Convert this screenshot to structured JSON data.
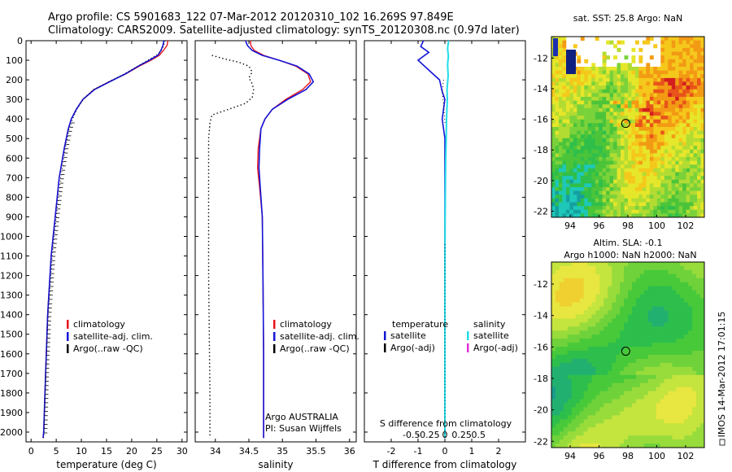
{
  "title_line1": "Argo profile: CS 5901683_122 07-Mar-2012 20120310_102 16.269S 97.849E",
  "title_line2": "Climatology: CARS2009. Satellite-adjusted climatology: synTS_20120308.nc (0.97d later)",
  "side_label": "IMOS 14-Mar-2012 17:01:15",
  "colors": {
    "climatology": "#e8141c",
    "satellite": "#1414d8",
    "argo": "#000000",
    "sat_salinity": "#22dde8",
    "argo_adj_salinity": "#e22fd8"
  },
  "chart_data": [
    {
      "type": "line",
      "name": "temperature-profile",
      "xlabel": "temperature (deg C)",
      "ylabel": "",
      "xlim": [
        -1,
        31
      ],
      "ylim": [
        2050,
        0
      ],
      "xticks": [
        "0",
        "5",
        "10",
        "15",
        "20",
        "25",
        "30"
      ],
      "xtick_values": [
        0,
        5,
        10,
        15,
        20,
        25,
        30
      ],
      "yticks": [
        "0",
        "100",
        "200",
        "300",
        "400",
        "500",
        "600",
        "700",
        "800",
        "900",
        "1000",
        "1100",
        "1200",
        "1300",
        "1400",
        "1500",
        "1600",
        "1700",
        "1800",
        "1900",
        "2000"
      ],
      "ytick_values": [
        0,
        100,
        200,
        300,
        400,
        500,
        600,
        700,
        800,
        900,
        1000,
        1100,
        1200,
        1300,
        1400,
        1500,
        1600,
        1700,
        1800,
        1900,
        2000
      ],
      "legend": [
        "climatology",
        "satellite-adj. clim.",
        "Argo(..raw -QC)"
      ],
      "series": [
        {
          "name": "climatology",
          "x": [
            27.2,
            27.0,
            26.3,
            25.5,
            23.8,
            21.5,
            18.8,
            15.5,
            12.5,
            10.3,
            9.0,
            8.0,
            7.4,
            6.6,
            5.6,
            4.8,
            4.0,
            3.3,
            2.9,
            2.5,
            2.4
          ],
          "y": [
            0,
            25,
            50,
            75,
            100,
            130,
            170,
            210,
            250,
            300,
            350,
            400,
            450,
            550,
            700,
            900,
            1100,
            1400,
            1700,
            2000,
            2030
          ]
        },
        {
          "name": "satellite-adj. clim.",
          "x": [
            26.4,
            26.2,
            25.8,
            25.2,
            23.5,
            21.3,
            18.7,
            15.6,
            12.6,
            10.3,
            9.0,
            8.0,
            7.4,
            6.6,
            5.6,
            4.8,
            4.0,
            3.3,
            2.9,
            2.5,
            2.4
          ],
          "y": [
            0,
            25,
            50,
            75,
            100,
            130,
            170,
            210,
            250,
            300,
            350,
            400,
            450,
            550,
            700,
            900,
            1100,
            1400,
            1700,
            2000,
            2030
          ]
        },
        {
          "name": "Argo(..raw -QC)",
          "x": [
            26.6,
            26.4,
            25.9,
            24.8,
            23.2,
            21.2,
            18.5,
            15.4,
            12.4,
            10.4,
            9.1,
            8.3,
            7.6,
            6.8,
            5.9,
            5.0,
            4.2,
            3.4,
            2.9,
            2.6,
            2.5
          ],
          "y": [
            0,
            25,
            50,
            75,
            100,
            130,
            170,
            210,
            250,
            300,
            350,
            400,
            450,
            550,
            700,
            900,
            1100,
            1400,
            1700,
            2000,
            2030
          ]
        }
      ]
    },
    {
      "type": "line",
      "name": "salinity-profile",
      "xlabel": "salinity",
      "xlim": [
        33.7,
        36.1
      ],
      "ylim": [
        2050,
        0
      ],
      "xticks": [
        "34",
        "34.5",
        "35",
        "35.5",
        "36"
      ],
      "xtick_values": [
        34,
        34.5,
        35,
        35.5,
        36
      ],
      "legend": [
        "climatology",
        "satellite-adj. clim.",
        "Argo(..raw -QC)"
      ],
      "annotation": [
        "Argo AUSTRALIA",
        "PI: Susan Wijffels"
      ],
      "series": [
        {
          "name": "climatology",
          "x": [
            34.52,
            34.53,
            34.58,
            34.72,
            34.95,
            35.2,
            35.38,
            35.42,
            35.3,
            35.05,
            34.85,
            34.74,
            34.68,
            34.64,
            34.63,
            34.66,
            34.7,
            34.71,
            34.72,
            34.72,
            34.72
          ],
          "y": [
            0,
            25,
            50,
            75,
            100,
            130,
            170,
            210,
            250,
            300,
            350,
            400,
            450,
            550,
            650,
            750,
            900,
            1200,
            1600,
            2000,
            2030
          ]
        },
        {
          "name": "satellite-adj. clim.",
          "x": [
            34.45,
            34.48,
            34.55,
            34.7,
            34.95,
            35.22,
            35.4,
            35.46,
            35.35,
            35.08,
            34.85,
            34.74,
            34.68,
            34.66,
            34.65,
            34.67,
            34.7,
            34.71,
            34.72,
            34.72,
            34.72
          ],
          "y": [
            0,
            25,
            50,
            75,
            100,
            130,
            170,
            210,
            250,
            300,
            350,
            400,
            450,
            550,
            650,
            750,
            900,
            1200,
            1600,
            2000,
            2030
          ]
        },
        {
          "name": "Argo(..raw -QC)",
          "x": [
            33.95,
            34.1,
            34.35,
            34.5,
            34.55,
            34.5,
            34.55,
            34.57,
            34.55,
            34.45,
            34.2,
            33.95,
            33.92,
            33.9,
            33.9,
            33.9,
            33.9,
            33.91,
            33.92,
            33.92,
            33.92
          ],
          "y": [
            75,
            90,
            110,
            130,
            160,
            190,
            220,
            250,
            290,
            320,
            350,
            380,
            420,
            500,
            700,
            900,
            1200,
            1500,
            1800,
            2000,
            2030
          ]
        }
      ]
    },
    {
      "type": "line",
      "name": "difference-profile",
      "xlabel": "T difference from climatology",
      "top_label": "S difference from climatology",
      "xlim": [
        -3,
        3
      ],
      "ylim": [
        2050,
        0
      ],
      "xticks": [
        "-2",
        "-1",
        "0",
        "1",
        "2"
      ],
      "xtick_values": [
        -2,
        -1,
        0,
        1,
        2
      ],
      "s_ticks": [
        "-0.5",
        "-0.25",
        "0",
        "0.25",
        "0.5"
      ],
      "s_tick_values": [
        -0.5,
        -0.25,
        0,
        0.25,
        0.5
      ],
      "legend_headers": [
        "temperature",
        "salinity"
      ],
      "legend_temp": [
        "satellite",
        "Argo(-adj)"
      ],
      "legend_sal": [
        "satellite",
        "Argo(-adj)"
      ],
      "series": [
        {
          "name": "temperature satellite",
          "x": [
            -0.8,
            -0.9,
            -0.6,
            -1.0,
            -0.6,
            -0.2,
            -0.1,
            0.0,
            -0.1,
            0.0,
            0.0,
            0.0,
            0.0,
            0.0,
            0.0
          ],
          "y": [
            0,
            30,
            60,
            100,
            150,
            200,
            260,
            300,
            400,
            500,
            700,
            1000,
            1500,
            2000,
            2030
          ]
        },
        {
          "name": "salinity satellite",
          "x": [
            0.14,
            0.1,
            0.13,
            0.1,
            0.12,
            0.08,
            0.09,
            0.06,
            0.05,
            0.03,
            0.02,
            0.01,
            0.0,
            0.0,
            0.0
          ],
          "y": [
            0,
            40,
            80,
            120,
            180,
            250,
            300,
            400,
            500,
            600,
            700,
            900,
            1300,
            2000,
            2030
          ]
        },
        {
          "name": "temperature Argo(-adj)",
          "x": [
            -0.05,
            -0.1,
            -0.05,
            -0.02,
            0.0
          ],
          "y": [
            200,
            260,
            320,
            380,
            420
          ]
        }
      ]
    },
    {
      "type": "heatmap",
      "name": "sst-map",
      "title": "sat. SST: 25.8  Argo: NaN",
      "xticks": [
        "94",
        "96",
        "98",
        "100",
        "102"
      ],
      "xtick_values": [
        94,
        96,
        98,
        100,
        102
      ],
      "yticks": [
        "-12",
        "-14",
        "-16",
        "-18",
        "-20",
        "-22"
      ],
      "ytick_values": [
        -12,
        -14,
        -16,
        -18,
        -20,
        -22
      ],
      "xlim": [
        92.7,
        103.3
      ],
      "ylim": [
        -22.4,
        -10.6
      ],
      "marker": {
        "lon": 97.85,
        "lat": -16.27
      }
    },
    {
      "type": "heatmap",
      "name": "sla-map",
      "title_line1": "Altim. SLA: -0.1",
      "title_line2": "Argo h1000: NaN h2000: NaN",
      "xticks": [
        "94",
        "96",
        "98",
        "100",
        "102"
      ],
      "xtick_values": [
        94,
        96,
        98,
        100,
        102
      ],
      "yticks": [
        "-12",
        "-14",
        "-16",
        "-18",
        "-20",
        "-22"
      ],
      "ytick_values": [
        -12,
        -14,
        -16,
        -18,
        -20,
        -22
      ],
      "xlim": [
        92.7,
        103.3
      ],
      "ylim": [
        -22.4,
        -10.6
      ],
      "marker": {
        "lon": 97.85,
        "lat": -16.27
      }
    }
  ]
}
